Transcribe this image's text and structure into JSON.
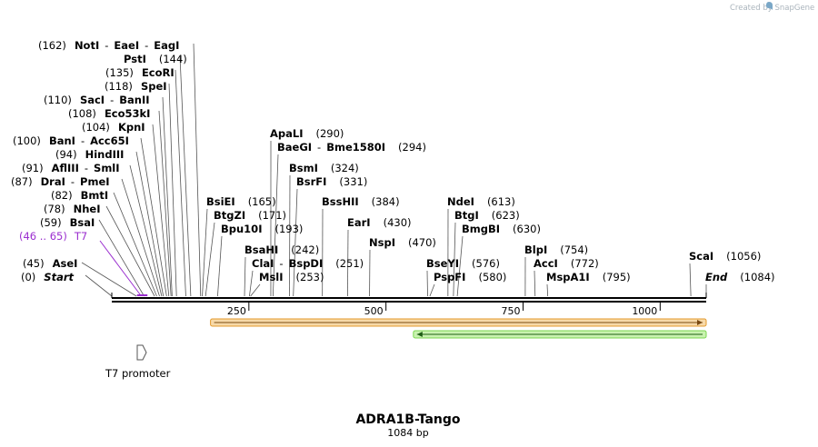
{
  "watermark": "Created by SnapGene",
  "sequence": {
    "name": "ADRA1B-Tango",
    "length_label": "1084 bp",
    "length_bp": 1084
  },
  "enzymes": [
    {
      "pos": 162,
      "label": "(162)",
      "names": [
        "NotI",
        "EaeI",
        "EagI"
      ]
    },
    {
      "pos": 144,
      "label": "(144)",
      "names": [
        "PstI"
      ]
    },
    {
      "pos": 135,
      "label": "(135)",
      "names": [
        "EcoRI"
      ]
    },
    {
      "pos": 118,
      "label": "(118)",
      "names": [
        "SpeI"
      ]
    },
    {
      "pos": 110,
      "label": "(110)",
      "names": [
        "SacI",
        "BanII"
      ]
    },
    {
      "pos": 108,
      "label": "(108)",
      "names": [
        "Eco53kI"
      ]
    },
    {
      "pos": 104,
      "label": "(104)",
      "names": [
        "KpnI"
      ]
    },
    {
      "pos": 100,
      "label": "(100)",
      "names": [
        "BanI",
        "Acc65I"
      ]
    },
    {
      "pos": 94,
      "label": "(94)",
      "names": [
        "HindIII"
      ]
    },
    {
      "pos": 91,
      "label": "(91)",
      "names": [
        "AflIII",
        "SmlI"
      ]
    },
    {
      "pos": 87,
      "label": "(87)",
      "names": [
        "DraI",
        "PmeI"
      ]
    },
    {
      "pos": 82,
      "label": "(82)",
      "names": [
        "BmtI"
      ]
    },
    {
      "pos": 78,
      "label": "(78)",
      "names": [
        "NheI"
      ]
    },
    {
      "pos": 59,
      "label": "(59)",
      "names": [
        "BsaI"
      ]
    },
    {
      "pos": 45,
      "label": "(45)",
      "names": [
        "AseI"
      ]
    },
    {
      "pos": 0,
      "label": "(0)",
      "names": [
        "Start"
      ],
      "italic": true
    },
    {
      "pos": 165,
      "label": "(165)",
      "names": [
        "BsiEI"
      ]
    },
    {
      "pos": 171,
      "label": "(171)",
      "names": [
        "BtgZI"
      ]
    },
    {
      "pos": 193,
      "label": "(193)",
      "names": [
        "Bpu10I"
      ]
    },
    {
      "pos": 242,
      "label": "(242)",
      "names": [
        "BsaHI"
      ]
    },
    {
      "pos": 251,
      "label": "(251)",
      "names": [
        "ClaI",
        "BspDI"
      ]
    },
    {
      "pos": 253,
      "label": "(253)",
      "names": [
        "MslI"
      ]
    },
    {
      "pos": 290,
      "label": "(290)",
      "names": [
        "ApaLI"
      ]
    },
    {
      "pos": 294,
      "label": "(294)",
      "names": [
        "BaeGI",
        "Bme1580I"
      ]
    },
    {
      "pos": 324,
      "label": "(324)",
      "names": [
        "BsmI"
      ]
    },
    {
      "pos": 331,
      "label": "(331)",
      "names": [
        "BsrFI"
      ]
    },
    {
      "pos": 384,
      "label": "(384)",
      "names": [
        "BssHII"
      ]
    },
    {
      "pos": 430,
      "label": "(430)",
      "names": [
        "EarI"
      ]
    },
    {
      "pos": 470,
      "label": "(470)",
      "names": [
        "NspI"
      ]
    },
    {
      "pos": 576,
      "label": "(576)",
      "names": [
        "BseYI"
      ]
    },
    {
      "pos": 580,
      "label": "(580)",
      "names": [
        "PspFI"
      ]
    },
    {
      "pos": 613,
      "label": "(613)",
      "names": [
        "NdeI"
      ]
    },
    {
      "pos": 623,
      "label": "(623)",
      "names": [
        "BtgI"
      ]
    },
    {
      "pos": 630,
      "label": "(630)",
      "names": [
        "BmgBI"
      ]
    },
    {
      "pos": 754,
      "label": "(754)",
      "names": [
        "BlpI"
      ]
    },
    {
      "pos": 772,
      "label": "(772)",
      "names": [
        "AccI"
      ]
    },
    {
      "pos": 795,
      "label": "(795)",
      "names": [
        "MspA1I"
      ]
    },
    {
      "pos": 1056,
      "label": "(1056)",
      "names": [
        "ScaI"
      ]
    },
    {
      "pos": 1084,
      "label": "(1084)",
      "names": [
        "End"
      ],
      "italic": true
    }
  ],
  "primer": {
    "label": "(46 .. 65)",
    "name": "T7",
    "start": 46,
    "end": 65,
    "color": "#9b2fcf"
  },
  "promoter": {
    "name": "T7 promoter"
  },
  "ticks": [
    {
      "pos": 250,
      "label": "250"
    },
    {
      "pos": 500,
      "label": "500"
    },
    {
      "pos": 750,
      "label": "750"
    },
    {
      "pos": 1000,
      "label": "1000"
    }
  ],
  "features": [
    {
      "name": "orange-feature",
      "start": 180,
      "end": 1084,
      "direction": "forward",
      "fill": "#f7d9a8",
      "stroke": "#e39a2c",
      "arrow": "#7a4a12"
    },
    {
      "name": "green-feature",
      "start": 550,
      "end": 1084,
      "direction": "reverse",
      "fill": "#c9f2b0",
      "stroke": "#7bd64f",
      "arrow": "#1e5e14"
    }
  ],
  "colors": {
    "line": "#000000",
    "leader": "#666666",
    "primer": "#9b2fcf"
  }
}
